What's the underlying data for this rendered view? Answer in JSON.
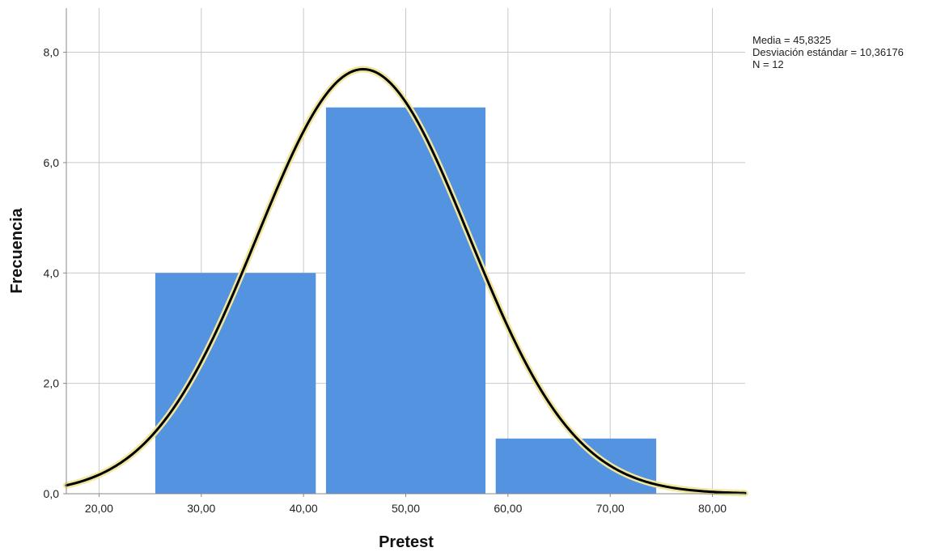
{
  "chart_data": {
    "type": "bar",
    "subtype": "histogram-with-normal-curve",
    "xlabel": "Pretest",
    "ylabel": "Frecuencia",
    "xlim": [
      16.8,
      83.2
    ],
    "ylim": [
      0,
      8.8
    ],
    "x_ticks": [
      20,
      30,
      40,
      50,
      60,
      70,
      80
    ],
    "x_tick_labels": [
      "20,00",
      "30,00",
      "40,00",
      "50,00",
      "60,00",
      "70,00",
      "80,00"
    ],
    "y_ticks": [
      0,
      2,
      4,
      6,
      8
    ],
    "y_tick_labels": [
      "0,0",
      "2,0",
      "4,0",
      "6,0",
      "8,0"
    ],
    "bins": [
      {
        "start": 25.5,
        "end": 41.2,
        "count": 4
      },
      {
        "start": 42.2,
        "end": 57.8,
        "count": 7
      },
      {
        "start": 58.8,
        "end": 74.5,
        "count": 1
      }
    ],
    "normal_curve": {
      "mean": 45.8325,
      "sd": 10.36176,
      "n": 12,
      "bin_width": 16.65
    },
    "stats_text": [
      "Media = 45,8325",
      "Desviación estándar = 10,36176",
      "N = 12"
    ],
    "grid": true,
    "legend": "none",
    "colors": {
      "bar": "#5393e0",
      "curve": "#000000",
      "curve_halo": "#f1e6a0",
      "grid": "#c8c8c8",
      "axis": "#888888"
    }
  }
}
